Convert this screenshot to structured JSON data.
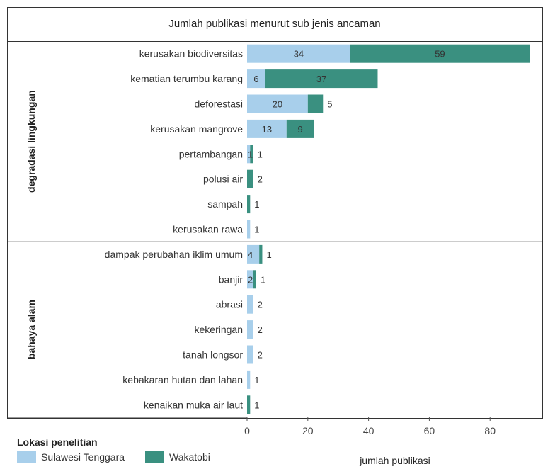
{
  "chart_data": {
    "type": "bar",
    "orientation": "horizontal",
    "stacked": true,
    "title": "Jumlah publikasi menurut sub jenis ancaman",
    "xlabel": "jumlah publikasi",
    "xlim": [
      0,
      93
    ],
    "xticks": [
      0,
      20,
      40,
      60,
      80
    ],
    "legend": {
      "title": "Lokasi penelitian",
      "position": "bottom-left",
      "items": [
        {
          "label": "Sulawesi Tenggara",
          "color": "#a8cfeb"
        },
        {
          "label": "Wakatobi",
          "color": "#3a9080"
        }
      ]
    },
    "series": [
      {
        "name": "Sulawesi Tenggara",
        "color": "#a8cfeb"
      },
      {
        "name": "Wakatobi",
        "color": "#3a9080"
      }
    ],
    "groups": [
      {
        "label": "degradasi lingkungan",
        "rows": [
          {
            "category": "kerusakan biodiversitas",
            "values": [
              34,
              59
            ],
            "labels": [
              "34",
              "59"
            ]
          },
          {
            "category": "kematian terumbu karang",
            "values": [
              6,
              37
            ],
            "labels": [
              "6",
              "37"
            ]
          },
          {
            "category": "deforestasi",
            "values": [
              20,
              5
            ],
            "labels": [
              "20",
              "5"
            ]
          },
          {
            "category": "kerusakan mangrove",
            "values": [
              13,
              9
            ],
            "labels": [
              "13",
              "9"
            ]
          },
          {
            "category": "pertambangan",
            "values": [
              1,
              1
            ],
            "labels": [
              "1",
              "1"
            ]
          },
          {
            "category": "polusi air",
            "values": [
              0,
              2
            ],
            "labels": [
              "",
              "2"
            ]
          },
          {
            "category": "sampah",
            "values": [
              0,
              1
            ],
            "labels": [
              "",
              "1"
            ]
          },
          {
            "category": "kerusakan rawa",
            "values": [
              1,
              0
            ],
            "labels": [
              "1",
              ""
            ]
          }
        ]
      },
      {
        "label": "bahaya alam",
        "rows": [
          {
            "category": "dampak perubahan iklim umum",
            "values": [
              4,
              1
            ],
            "labels": [
              "4",
              "1"
            ]
          },
          {
            "category": "banjir",
            "values": [
              2,
              1
            ],
            "labels": [
              "2",
              "1"
            ]
          },
          {
            "category": "abrasi",
            "values": [
              2,
              0
            ],
            "labels": [
              "2",
              ""
            ]
          },
          {
            "category": "kekeringan",
            "values": [
              2,
              0
            ],
            "labels": [
              "2",
              ""
            ]
          },
          {
            "category": "tanah longsor",
            "values": [
              2,
              0
            ],
            "labels": [
              "2",
              ""
            ]
          },
          {
            "category": "kebakaran hutan dan lahan",
            "values": [
              1,
              0
            ],
            "labels": [
              "1",
              ""
            ]
          },
          {
            "category": "kenaikan muka air laut",
            "values": [
              0,
              1
            ],
            "labels": [
              "",
              "1"
            ]
          }
        ]
      }
    ]
  }
}
